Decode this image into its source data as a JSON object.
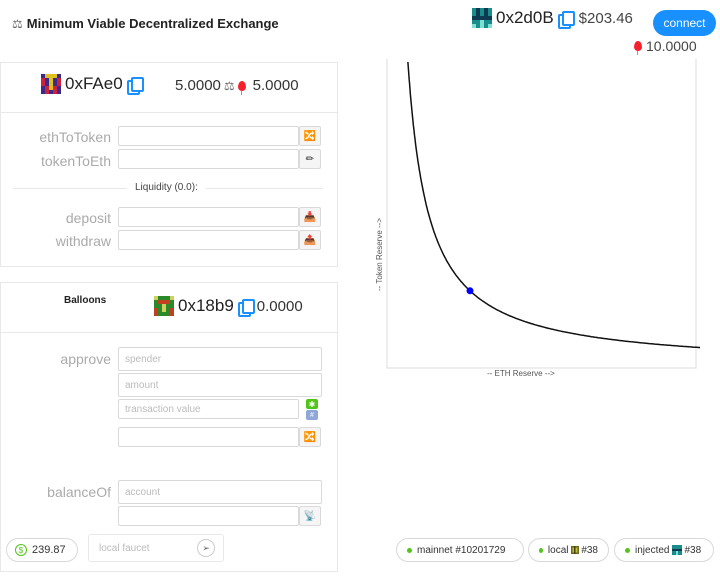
{
  "header": {
    "title": "Minimum Viable Decentralized Exchange",
    "account_address": "0x2d0B",
    "usd_balance": "$203.46",
    "connect_label": "connect",
    "balloon_balance": "10.0000"
  },
  "dex_card": {
    "address": "0xFAe0",
    "eth_amount": "5.0000",
    "token_amount": "5.0000",
    "eth_to_token_label": "ethToToken",
    "token_to_eth_label": "tokenToEth",
    "liquidity_label": "Liquidity (0.0):",
    "deposit_label": "deposit",
    "withdraw_label": "withdraw"
  },
  "token_card": {
    "title": "Balloons",
    "address": "0x18b9",
    "balance": "0.0000",
    "approve_label": "approve",
    "spender_placeholder": "spender",
    "amount_placeholder": "amount",
    "tx_value_placeholder": "transaction value",
    "balance_of_label": "balanceOf",
    "account_placeholder": "account"
  },
  "chart_data": {
    "type": "line",
    "xlabel": "-- ETH Reserve -->",
    "ylabel": "-- Token Reserve -->",
    "curve": "x * y = k",
    "current_point": {
      "x": 5,
      "y": 5
    }
  },
  "footer": {
    "eth_price": "239.87",
    "faucet_placeholder": "local faucet",
    "networks": [
      {
        "label": "mainnet #10201729"
      },
      {
        "label": "local",
        "block": "#38"
      },
      {
        "label": "injected",
        "block": "#38"
      }
    ]
  },
  "colors": {
    "accent": "#1890ff",
    "status_ok": "#52c41a",
    "balloon": "#f5222d",
    "chart_point": "#0000ff"
  }
}
